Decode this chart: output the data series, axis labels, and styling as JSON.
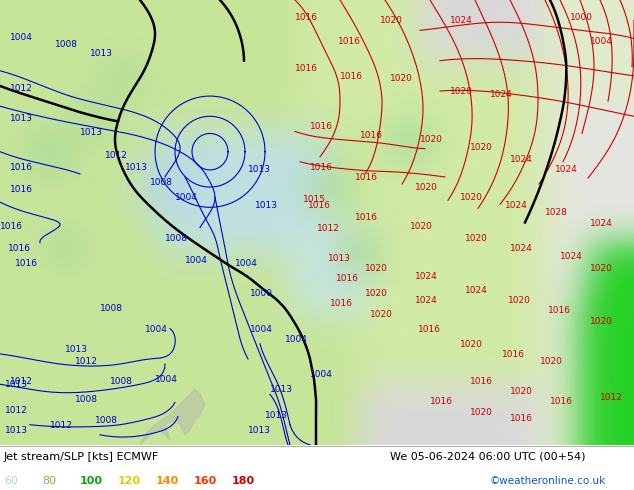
{
  "title_left": "Jet stream/SLP [kts] ECMWF",
  "title_right": "We 05-06-2024 06:00 UTC (00+54)",
  "copyright": "©weatheronline.co.uk",
  "legend_values": [
    60,
    80,
    100,
    120,
    140,
    160,
    180
  ],
  "legend_colors": [
    "#aaddaa",
    "#77bb44",
    "#00aa00",
    "#ddcc00",
    "#ff8800",
    "#ff3300",
    "#cc0000"
  ],
  "figsize": [
    6.34,
    4.9
  ],
  "dpi": 100,
  "map_bg_color": "#d8d8d8",
  "light_green": "#c8e8a0",
  "mid_green": "#a8d870",
  "bright_green": "#44dd00",
  "blue_label_color": "#0000cc",
  "red_label_color": "#cc0000",
  "black_line_color": "#000000",
  "blue_line_color": "#0044cc",
  "red_line_color": "#cc2200"
}
